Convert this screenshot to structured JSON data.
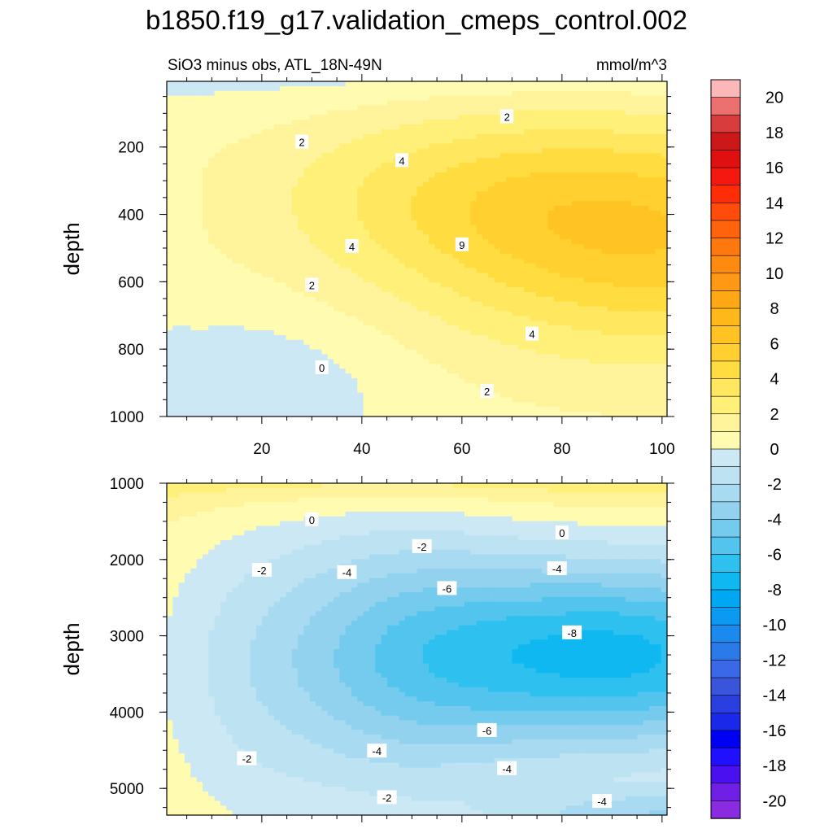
{
  "figure": {
    "title": "b1850.f19_g17.validation_cmeps_control.002",
    "subtitle_left": "SiO3 minus obs, ATL_18N-49N",
    "subtitle_right": "mmol/m^3"
  },
  "chart_data": [
    {
      "type": "contour",
      "panel": "upper",
      "ylabel": "depth",
      "xlabel": "",
      "xlim": [
        1,
        101
      ],
      "ylim": [
        1000,
        5
      ],
      "xticks": [
        20,
        40,
        60,
        80,
        100
      ],
      "yticks": [
        200,
        400,
        600,
        800,
        1000
      ],
      "field": {
        "grid_x": [
          1,
          5,
          10,
          15,
          20,
          25,
          30,
          35,
          40,
          45,
          50,
          55,
          60,
          65,
          70,
          75,
          80,
          85,
          90,
          95,
          100
        ],
        "grid_y": [
          50,
          150,
          250,
          350,
          450,
          550,
          650,
          750,
          850,
          950
        ],
        "note": "approximate field read from contour lines"
      },
      "contour_line_labels": [
        {
          "text": "2",
          "x": 69,
          "y": 110
        },
        {
          "text": "2",
          "x": 28,
          "y": 185
        },
        {
          "text": "4",
          "x": 48,
          "y": 240
        },
        {
          "text": "4",
          "x": 38,
          "y": 495
        },
        {
          "text": "9",
          "x": 60,
          "y": 490
        },
        {
          "text": "2",
          "x": 30,
          "y": 610
        },
        {
          "text": "4",
          "x": 74,
          "y": 755
        },
        {
          "text": "0",
          "x": 32,
          "y": 855
        },
        {
          "text": "2",
          "x": 65,
          "y": 925
        }
      ]
    },
    {
      "type": "contour",
      "panel": "lower",
      "ylabel": "depth",
      "xlabel": "",
      "xlim": [
        1,
        101
      ],
      "ylim": [
        5350,
        1000
      ],
      "xticks": [
        20,
        40,
        60,
        80,
        100
      ],
      "yticks": [
        1000,
        2000,
        3000,
        4000,
        5000
      ],
      "field": {
        "grid_x": [
          1,
          5,
          10,
          15,
          20,
          25,
          30,
          35,
          40,
          45,
          50,
          55,
          60,
          65,
          70,
          75,
          80,
          85,
          90,
          95,
          100
        ],
        "grid_y": [
          1000,
          1400,
          1800,
          2200,
          2600,
          3000,
          3400,
          3800,
          4200,
          4600,
          5000,
          5350
        ],
        "note": "approximate field read from contour lines"
      },
      "contour_line_labels": [
        {
          "text": "0",
          "x": 30,
          "y": 1480
        },
        {
          "text": "0",
          "x": 80,
          "y": 1650
        },
        {
          "text": "-2",
          "x": 52,
          "y": 1830
        },
        {
          "text": "-2",
          "x": 20,
          "y": 2140
        },
        {
          "text": "-4",
          "x": 37,
          "y": 2170
        },
        {
          "text": "-4",
          "x": 79,
          "y": 2120
        },
        {
          "text": "-6",
          "x": 57,
          "y": 2380
        },
        {
          "text": "-8",
          "x": 82,
          "y": 2960
        },
        {
          "text": "-6",
          "x": 65,
          "y": 4240
        },
        {
          "text": "-4",
          "x": 43,
          "y": 4510
        },
        {
          "text": "-4",
          "x": 69,
          "y": 4740
        },
        {
          "text": "-2",
          "x": 17,
          "y": 4610
        },
        {
          "text": "-2",
          "x": 45,
          "y": 5120
        },
        {
          "text": "-4",
          "x": 88,
          "y": 5170
        }
      ]
    }
  ],
  "colorbar": {
    "levels": [
      -21,
      -20,
      -19,
      -18,
      -17,
      -16,
      -15,
      -14,
      -13,
      -12,
      -11,
      -10,
      -9,
      -8,
      -7,
      -6,
      -5,
      -4,
      -3,
      -2,
      -1,
      0,
      1,
      2,
      3,
      4,
      5,
      6,
      7,
      8,
      9,
      10,
      11,
      12,
      13,
      14,
      15,
      16,
      17,
      18,
      19,
      20,
      21
    ],
    "labels": [
      "20",
      "18",
      "16",
      "14",
      "12",
      "10",
      "8",
      "6",
      "4",
      "2",
      "0",
      "-2",
      "-4",
      "-6",
      "-8",
      "-10",
      "-12",
      "-14",
      "-16",
      "-18",
      "-20"
    ],
    "colors": [
      "#8a2be2",
      "#7020e6",
      "#4a10f0",
      "#2010ff",
      "#0000f5",
      "#1a28ea",
      "#2b3fe0",
      "#3a54dc",
      "#3b68e6",
      "#2a7aea",
      "#1a8aee",
      "#0a9af2",
      "#00a8f4",
      "#10b8f2",
      "#2ec0ee",
      "#52c4ee",
      "#74cbee",
      "#92d2ef",
      "#a8dbf1",
      "#bde3f3",
      "#cce8f4",
      "#fffbb0",
      "#fff49c",
      "#fff07a",
      "#ffe860",
      "#ffdc40",
      "#ffd030",
      "#ffc424",
      "#ffb81a",
      "#ffa816",
      "#ff9812",
      "#ff8a10",
      "#ff780e",
      "#ff640c",
      "#ff4c0a",
      "#ff2c08",
      "#f41810",
      "#e01010",
      "#cc1818",
      "#d83c3c",
      "#ec7070",
      "#fcb8b8"
    ]
  }
}
